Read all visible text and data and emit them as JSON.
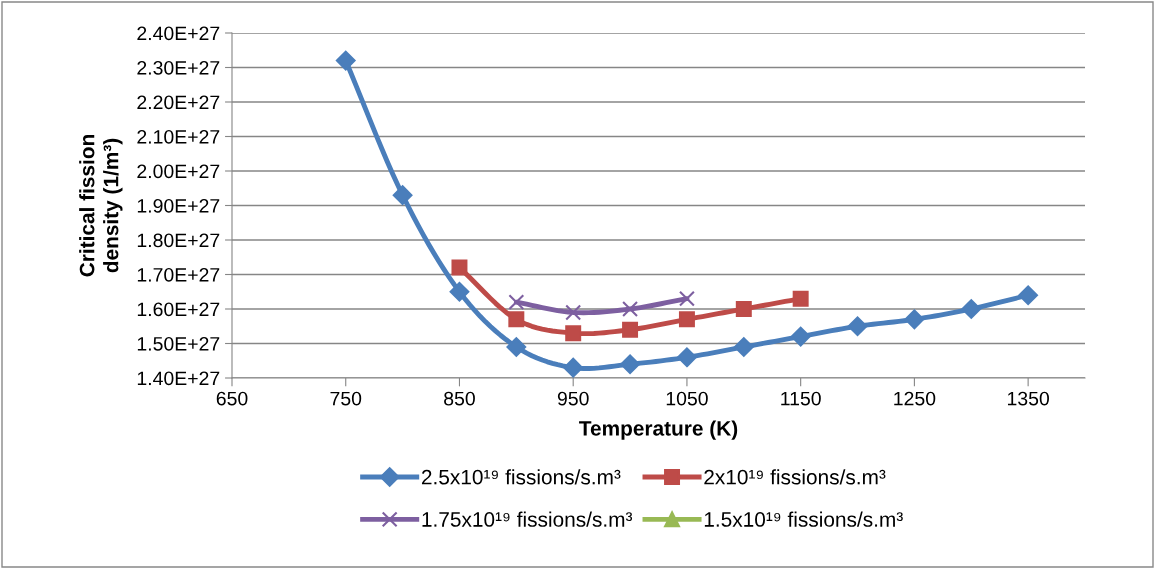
{
  "chart_data": {
    "type": "line",
    "xlabel": "Temperature (K)",
    "ylabel": "Critical fission\ndensity (1/m³)",
    "xlim": [
      650,
      1400
    ],
    "xticks": [
      650,
      750,
      850,
      950,
      1050,
      1150,
      1250,
      1350
    ],
    "ylim": [
      1.4e+27,
      2.4e+27
    ],
    "yticks": [
      {
        "value": 1.4e+27,
        "label": "1.40E+27"
      },
      {
        "value": 1.5e+27,
        "label": "1.50E+27"
      },
      {
        "value": 1.6e+27,
        "label": "1.60E+27"
      },
      {
        "value": 1.7e+27,
        "label": "1.70E+27"
      },
      {
        "value": 1.8e+27,
        "label": "1.80E+27"
      },
      {
        "value": 1.9e+27,
        "label": "1.90E+27"
      },
      {
        "value": 2e+27,
        "label": "2.00E+27"
      },
      {
        "value": 2.1e+27,
        "label": "2.10E+27"
      },
      {
        "value": 2.2e+27,
        "label": "2.20E+27"
      },
      {
        "value": 2.3e+27,
        "label": "2.30E+27"
      },
      {
        "value": 2.4e+27,
        "label": "2.40E+27"
      }
    ],
    "grid": "y",
    "legend": "bottom",
    "series": [
      {
        "name": "2.5x10¹⁹ fissions/s.m³",
        "color": "#4a7ebb",
        "marker": "diamond",
        "x": [
          750,
          800,
          850,
          900,
          950,
          1000,
          1050,
          1100,
          1150,
          1200,
          1250,
          1300,
          1350
        ],
        "values": [
          2.32e+27,
          1.93e+27,
          1.65e+27,
          1.49e+27,
          1.43e+27,
          1.44e+27,
          1.46e+27,
          1.49e+27,
          1.52e+27,
          1.55e+27,
          1.57e+27,
          1.6e+27,
          1.64e+27
        ]
      },
      {
        "name": "2x10¹⁹ fissions/s.m³",
        "color": "#be4b48",
        "marker": "square",
        "x": [
          850,
          900,
          950,
          1000,
          1050,
          1100,
          1150
        ],
        "values": [
          1.72e+27,
          1.57e+27,
          1.53e+27,
          1.54e+27,
          1.57e+27,
          1.6e+27,
          1.63e+27
        ]
      },
      {
        "name": "1.75x10¹⁹ fissions/s.m³",
        "color": "#7d5fa0",
        "marker": "cross",
        "x": [
          900,
          950,
          1000,
          1050
        ],
        "values": [
          1.62e+27,
          1.59e+27,
          1.6e+27,
          1.63e+27
        ]
      },
      {
        "name": "1.5x10¹⁹ fissions/s.m³",
        "color": "#98b954",
        "marker": "triangle"
      }
    ]
  }
}
